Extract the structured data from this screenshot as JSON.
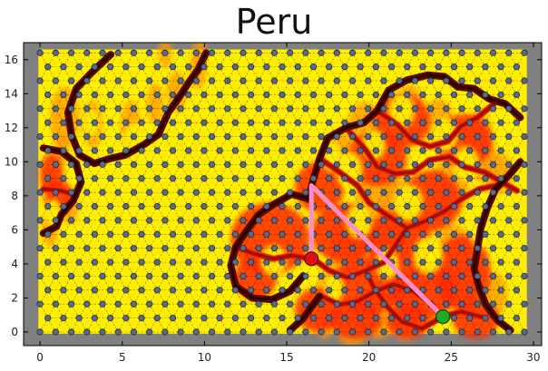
{
  "chart_data": {
    "type": "scatter",
    "title": "Peru",
    "xlabel": "",
    "ylabel": "",
    "xlim": [
      -1,
      30.5
    ],
    "ylim": [
      -0.8,
      17
    ],
    "x_ticks": [
      0,
      5,
      10,
      15,
      20,
      25,
      30
    ],
    "y_ticks": [
      0,
      2,
      4,
      6,
      8,
      10,
      12,
      14,
      16
    ],
    "grid": false,
    "background_color": "#808080",
    "hex_lattice": {
      "x_range": [
        0,
        29.5
      ],
      "y_range": [
        0,
        16.5
      ]
    },
    "colors": {
      "low": "#ffee00",
      "mid": "#ff9a00",
      "high": "#ff2a00",
      "path_dark": "#5a0a00",
      "path_mid": "#a01208",
      "route": "#ff88cc",
      "node": "#5a6a8a",
      "start": "#dd1111",
      "end": "#22aa22"
    },
    "start_point": {
      "x": 16.5,
      "y": 4.3
    },
    "end_point": {
      "x": 24.5,
      "y": 0.9
    },
    "route": [
      [
        16.5,
        4.3
      ],
      [
        16.5,
        8.6
      ],
      [
        24.5,
        0.9
      ]
    ],
    "dark_paths": [
      [
        [
          4.3,
          16.3
        ],
        [
          3.2,
          15.3
        ],
        [
          2.2,
          14.3
        ],
        [
          1.7,
          12.9
        ],
        [
          1.9,
          11.6
        ],
        [
          2.4,
          10.4
        ],
        [
          3.3,
          9.9
        ],
        [
          4.3,
          10.2
        ],
        [
          5.2,
          10.4
        ],
        [
          6.3,
          11.0
        ],
        [
          7.2,
          11.6
        ],
        [
          7.8,
          12.9
        ],
        [
          8.4,
          13.7
        ],
        [
          9.0,
          14.6
        ],
        [
          9.6,
          15.4
        ],
        [
          10.1,
          16.4
        ]
      ],
      [
        [
          0.2,
          10.8
        ],
        [
          1.3,
          10.6
        ],
        [
          2.2,
          9.9
        ],
        [
          2.5,
          8.8
        ],
        [
          2.0,
          7.7
        ],
        [
          1.3,
          6.9
        ],
        [
          1.0,
          6.2
        ],
        [
          0.2,
          5.8
        ]
      ],
      [
        [
          16.4,
          7.8
        ],
        [
          15.3,
          8.1
        ],
        [
          14.2,
          7.5
        ],
        [
          13.3,
          6.9
        ],
        [
          12.6,
          6.0
        ],
        [
          11.9,
          5.0
        ],
        [
          11.6,
          3.9
        ],
        [
          11.9,
          2.7
        ],
        [
          12.9,
          2.0
        ],
        [
          14.1,
          1.9
        ],
        [
          15.2,
          2.4
        ],
        [
          16.0,
          3.3
        ]
      ],
      [
        [
          16.3,
          7.8
        ],
        [
          16.6,
          8.9
        ],
        [
          17.0,
          10.2
        ],
        [
          17.5,
          11.4
        ],
        [
          18.6,
          12.0
        ],
        [
          19.7,
          12.3
        ],
        [
          20.5,
          13.0
        ],
        [
          21.2,
          14.2
        ],
        [
          22.3,
          14.8
        ],
        [
          23.6,
          15.1
        ],
        [
          24.6,
          15.0
        ],
        [
          25.4,
          14.4
        ],
        [
          26.4,
          14.3
        ],
        [
          27.3,
          13.7
        ],
        [
          28.3,
          13.4
        ],
        [
          29.2,
          12.6
        ]
      ],
      [
        [
          29.2,
          10.0
        ],
        [
          28.5,
          9.2
        ],
        [
          27.7,
          8.4
        ],
        [
          27.2,
          7.3
        ],
        [
          26.8,
          6.1
        ],
        [
          26.6,
          4.9
        ],
        [
          26.4,
          3.7
        ],
        [
          26.7,
          2.6
        ],
        [
          27.1,
          1.6
        ],
        [
          27.8,
          0.7
        ],
        [
          28.6,
          0.1
        ]
      ],
      [
        [
          15.2,
          0.1
        ],
        [
          16.0,
          0.8
        ],
        [
          16.6,
          1.6
        ],
        [
          17.0,
          2.1
        ]
      ]
    ],
    "mid_paths": [
      [
        [
          16.6,
          4.3
        ],
        [
          17.6,
          3.6
        ],
        [
          18.7,
          3.2
        ],
        [
          19.8,
          3.6
        ],
        [
          20.9,
          4.1
        ],
        [
          21.6,
          5.1
        ],
        [
          22.3,
          6.1
        ],
        [
          23.4,
          6.5
        ],
        [
          24.6,
          7.1
        ],
        [
          25.6,
          7.8
        ],
        [
          26.7,
          8.4
        ],
        [
          27.7,
          8.6
        ]
      ],
      [
        [
          17.1,
          2.1
        ],
        [
          18.2,
          1.6
        ],
        [
          19.3,
          1.8
        ],
        [
          20.4,
          2.4
        ],
        [
          21.5,
          2.8
        ],
        [
          22.7,
          2.4
        ],
        [
          23.7,
          1.7
        ],
        [
          24.5,
          0.9
        ]
      ],
      [
        [
          18.6,
          12.0
        ],
        [
          19.8,
          10.7
        ],
        [
          20.5,
          9.7
        ],
        [
          21.6,
          9.3
        ],
        [
          22.7,
          9.4
        ],
        [
          23.7,
          10.1
        ],
        [
          24.9,
          10.3
        ],
        [
          25.8,
          9.7
        ],
        [
          27.0,
          9.4
        ],
        [
          28.1,
          8.8
        ],
        [
          29.0,
          8.3
        ]
      ],
      [
        [
          17.0,
          10.2
        ],
        [
          18.2,
          9.4
        ],
        [
          19.3,
          8.6
        ],
        [
          20.0,
          7.6
        ],
        [
          21.2,
          6.8
        ],
        [
          22.3,
          6.1
        ]
      ],
      [
        [
          20.5,
          13.0
        ],
        [
          21.7,
          12.2
        ],
        [
          22.6,
          11.3
        ],
        [
          23.7,
          10.9
        ],
        [
          24.8,
          11.2
        ],
        [
          25.6,
          12.1
        ],
        [
          26.6,
          12.6
        ],
        [
          27.6,
          13.4
        ]
      ],
      [
        [
          0.2,
          8.4
        ],
        [
          1.3,
          8.3
        ],
        [
          2.2,
          8.0
        ]
      ],
      [
        [
          11.9,
          5.0
        ],
        [
          13.0,
          4.6
        ],
        [
          14.2,
          4.3
        ],
        [
          15.3,
          4.5
        ],
        [
          16.5,
          4.3
        ]
      ],
      [
        [
          19.8,
          3.6
        ],
        [
          20.3,
          2.6
        ],
        [
          21.1,
          1.5
        ],
        [
          22.0,
          0.6
        ],
        [
          23.2,
          0.2
        ],
        [
          24.5,
          0.9
        ],
        [
          25.6,
          1.2
        ],
        [
          26.8,
          0.9
        ]
      ]
    ],
    "orange_blobs": [
      [
        1.5,
        0.9,
        12.6,
        1.8
      ],
      [
        3.2,
        0.6,
        12.2,
        1.4
      ],
      [
        5.5,
        0.6,
        12.2,
        1.4
      ],
      [
        7.0,
        0.5,
        13.4,
        1.2
      ],
      [
        8.3,
        0.6,
        14.1,
        1.2
      ],
      [
        9.6,
        0.5,
        15.3,
        1.0
      ],
      [
        9.7,
        0.4,
        16.4,
        1.0
      ],
      [
        7.6,
        0.4,
        16.4,
        0.9
      ],
      [
        0.6,
        0.5,
        8.3,
        1.2
      ],
      [
        1.8,
        0.5,
        7.3,
        1.0
      ],
      [
        0.6,
        0.5,
        6.0,
        1.0
      ],
      [
        1.3,
        0.4,
        10.8,
        1.0
      ],
      [
        19.0,
        1.2,
        6.0,
        1.6
      ],
      [
        20.5,
        1.3,
        8.0,
        1.6
      ],
      [
        22.0,
        1.5,
        7.4,
        1.6
      ],
      [
        18.2,
        1.0,
        10.4,
        1.4
      ],
      [
        19.7,
        1.0,
        12.2,
        1.3
      ],
      [
        22.5,
        0.8,
        13.3,
        1.2
      ],
      [
        24.2,
        1.0,
        12.3,
        1.4
      ],
      [
        26.6,
        0.9,
        11.6,
        1.3
      ],
      [
        26.9,
        0.9,
        10.1,
        1.3
      ],
      [
        27.9,
        0.9,
        9.3,
        1.2
      ],
      [
        24.9,
        1.2,
        8.5,
        1.6
      ],
      [
        18.6,
        1.0,
        4.7,
        1.4
      ],
      [
        21.3,
        1.3,
        4.8,
        1.6
      ],
      [
        23.0,
        1.0,
        3.5,
        1.4
      ],
      [
        25.2,
        1.1,
        4.7,
        1.6
      ],
      [
        25.6,
        1.0,
        2.5,
        1.5
      ],
      [
        20.6,
        1.2,
        1.0,
        1.4
      ],
      [
        22.2,
        1.0,
        0.9,
        1.4
      ],
      [
        27.6,
        0.8,
        2.2,
        1.3
      ],
      [
        19.0,
        1.0,
        0.3,
        1.2
      ],
      [
        17.3,
        0.6,
        0.6,
        1.0
      ],
      [
        17.8,
        0.9,
        2.8,
        1.1
      ]
    ],
    "red_zones": [
      [
        18.5,
        2.0,
        5.8,
        1.7
      ],
      [
        21.8,
        2.0,
        5.4,
        1.7
      ],
      [
        17.0,
        1.5,
        8.5,
        1.5
      ],
      [
        20.5,
        1.8,
        10.2,
        1.6
      ],
      [
        23.8,
        1.8,
        7.7,
        1.8
      ],
      [
        14.0,
        2.4,
        5.5,
        2.1
      ],
      [
        13.1,
        1.3,
        3.2,
        1.3
      ],
      [
        20.0,
        2.2,
        2.8,
        1.7
      ],
      [
        23.3,
        2.0,
        2.4,
        1.7
      ],
      [
        25.7,
        1.7,
        3.5,
        2.2
      ],
      [
        16.9,
        1.4,
        1.3,
        1.3
      ],
      [
        19.2,
        1.6,
        0.7,
        1.1
      ],
      [
        22.4,
        1.3,
        0.6,
        1.0
      ],
      [
        22.0,
        1.7,
        12.4,
        1.6
      ],
      [
        25.8,
        1.7,
        11.2,
        1.6
      ],
      [
        26.5,
        1.4,
        0.7,
        1.1
      ],
      [
        0.7,
        0.7,
        9.3,
        1.2
      ],
      [
        1.2,
        0.8,
        7.9,
        1.0
      ]
    ],
    "yellow_cells": [
      [
        3.1,
        0.5,
        12.3,
        0.8
      ],
      [
        5.8,
        0.7,
        11.4,
        0.9
      ],
      [
        18.8,
        0.8,
        9.5,
        1.1
      ],
      [
        22.4,
        0.9,
        7.6,
        1.1
      ],
      [
        19.4,
        0.8,
        6.5,
        1.0
      ],
      [
        23.6,
        0.9,
        4.5,
        1.1
      ],
      [
        17.9,
        0.6,
        2.6,
        0.8
      ],
      [
        21.1,
        0.7,
        4.0,
        0.9
      ],
      [
        24.6,
        0.8,
        11.6,
        1.0
      ],
      [
        22.0,
        0.8,
        13.0,
        1.0
      ],
      [
        20.3,
        0.7,
        11.0,
        0.9
      ],
      [
        14.2,
        0.8,
        4.2,
        0.9
      ],
      [
        25.9,
        0.8,
        9.9,
        1.0
      ],
      [
        17.7,
        0.6,
        10.3,
        0.9
      ],
      [
        26.8,
        0.7,
        6.0,
        1.0
      ],
      [
        0.8,
        0.5,
        7.0,
        0.8
      ]
    ]
  }
}
